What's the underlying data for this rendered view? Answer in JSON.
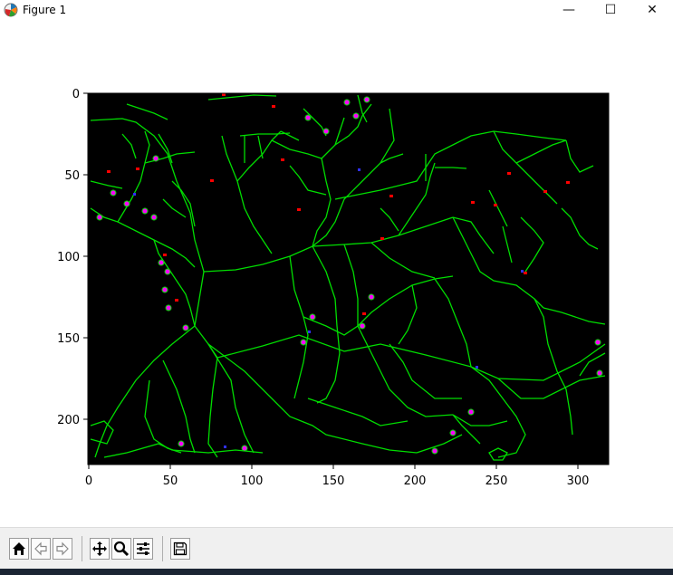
{
  "window": {
    "title": "Figure 1",
    "controls": {
      "minimize": "—",
      "maximize": "☐",
      "close": "✕"
    }
  },
  "plot": {
    "background_color": "#000000",
    "colors": {
      "vessel": "#00dd00",
      "junction_highlight": "#ff00ff",
      "endpoint": "#ff0000",
      "node": "#3030ff"
    },
    "x_ticks": [
      "0",
      "50",
      "100",
      "150",
      "200",
      "250",
      "300"
    ],
    "y_ticks": [
      "0",
      "50",
      "100",
      "150",
      "200"
    ]
  },
  "toolbar": {
    "buttons": [
      {
        "name": "home-icon",
        "label": "Home"
      },
      {
        "name": "back-icon",
        "label": "Back"
      },
      {
        "name": "forward-icon",
        "label": "Forward"
      },
      {
        "name": "pan-icon",
        "label": "Pan"
      },
      {
        "name": "zoom-icon",
        "label": "Zoom"
      },
      {
        "name": "configure-subplots-icon",
        "label": "Subplots"
      },
      {
        "name": "save-icon",
        "label": "Save"
      }
    ]
  }
}
